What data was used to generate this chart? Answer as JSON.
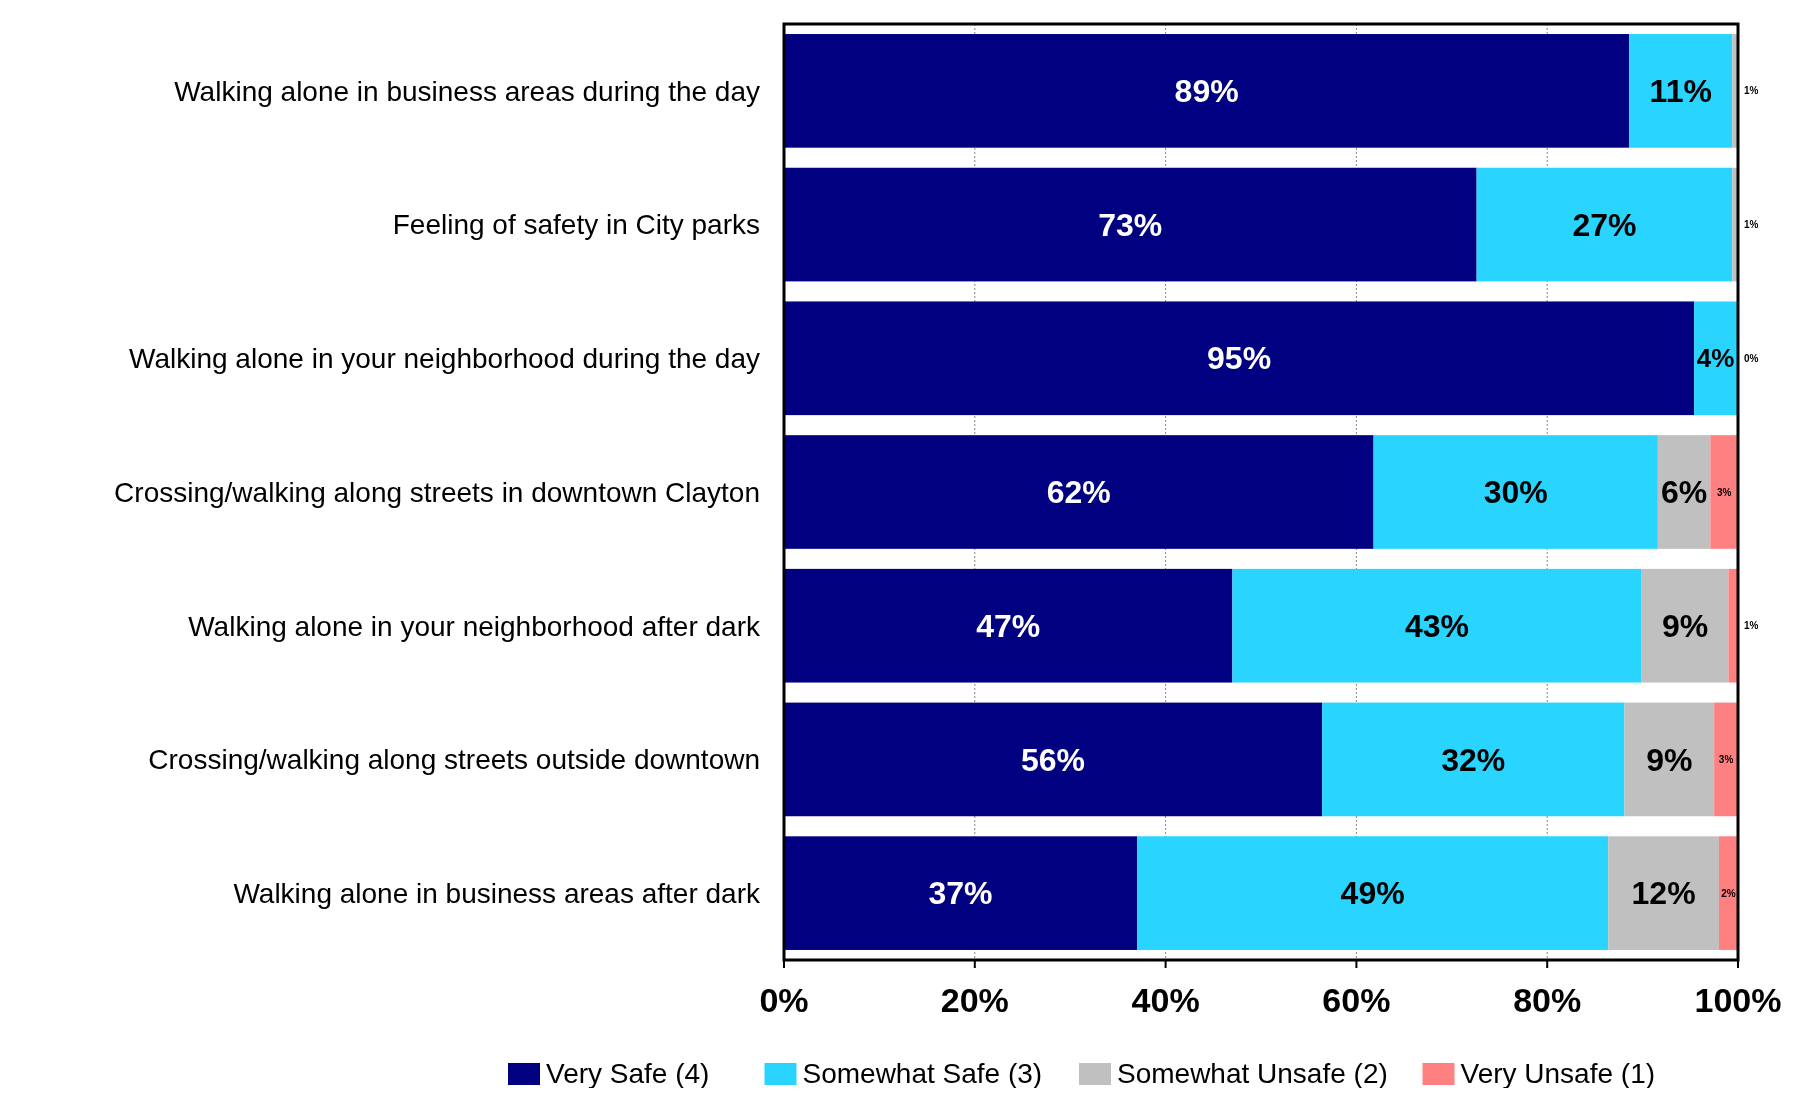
{
  "chart_data": {
    "type": "bar",
    "orientation": "horizontal",
    "stacked": true,
    "categories": [
      "Walking alone in business areas during the day",
      "Feeling of safety in City parks",
      "Walking alone in your neighborhood during the day",
      "Crossing/walking along streets in downtown Clayton",
      "Walking alone in your neighborhood after dark",
      "Crossing/walking along streets outside downtown",
      "Walking alone in business areas after dark"
    ],
    "series": [
      {
        "name": "Very Safe (4)",
        "color": "#000080",
        "values": [
          88.6,
          72.6,
          95.4,
          61.8,
          47.0,
          56.4,
          37.0
        ],
        "value_labels": [
          "89%",
          "73%",
          "95%",
          "62%",
          "47%",
          "56%",
          "37%"
        ]
      },
      {
        "name": "Somewhat Safe (3)",
        "color": "#29d4ff",
        "values": [
          10.8,
          26.8,
          4.5,
          29.8,
          42.9,
          31.7,
          49.4
        ],
        "value_labels": [
          "11%",
          "27%",
          "4%",
          "30%",
          "43%",
          "32%",
          "49%"
        ]
      },
      {
        "name": "Somewhat Unsafe (2)",
        "color": "#c0c0c0",
        "values": [
          0.6,
          0.6,
          0.1,
          5.5,
          9.1,
          9.4,
          11.6
        ],
        "value_labels": [
          "1%",
          "1%",
          "0%",
          "6%",
          "9%",
          "9%",
          "12%"
        ]
      },
      {
        "name": "Very Unsafe (1)",
        "color": "#ff8080",
        "values": [
          null,
          null,
          null,
          2.9,
          1.0,
          2.5,
          2.0
        ],
        "value_labels": [
          null,
          null,
          null,
          "3%",
          "1%",
          "3%",
          "2%"
        ]
      }
    ],
    "xlim": [
      0,
      100
    ],
    "xticks": [
      {
        "value": 0,
        "label": "0%"
      },
      {
        "value": 20,
        "label": "20%"
      },
      {
        "value": 40,
        "label": "40%"
      },
      {
        "value": 60,
        "label": "60%"
      },
      {
        "value": 80,
        "label": "80%"
      },
      {
        "value": 100,
        "label": "100%"
      }
    ],
    "grid": "x",
    "legend": "bottom"
  }
}
